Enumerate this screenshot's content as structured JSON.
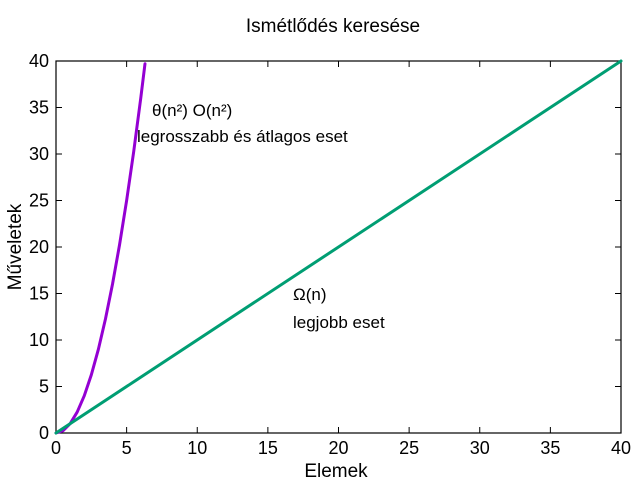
{
  "chart_data": {
    "type": "line",
    "title": "Ismétlődés keresése",
    "xlabel": "Elemek",
    "ylabel": "Műveletek",
    "xlim": [
      0,
      40
    ],
    "ylim": [
      0,
      40
    ],
    "xticks": [
      0,
      5,
      10,
      15,
      20,
      25,
      30,
      35,
      40
    ],
    "yticks": [
      0,
      5,
      10,
      15,
      20,
      25,
      30,
      35,
      40
    ],
    "grid": false,
    "series": [
      {
        "color": "#9400d3",
        "x": [
          0,
          0.5,
          1,
          1.5,
          2,
          2.5,
          3,
          3.5,
          4,
          4.5,
          5,
          5.5,
          6,
          6.3
        ],
        "y": [
          0,
          0.25,
          1,
          2.25,
          4,
          6.25,
          9,
          12.25,
          16,
          20.25,
          25,
          30.25,
          36,
          39.7
        ]
      },
      {
        "color": "#009e73",
        "x": [
          0,
          40
        ],
        "y": [
          0,
          40
        ]
      }
    ],
    "annotations": [
      {
        "line1": "θ(n²)  O(n²)",
        "line2": "legrosszabb és átlagos eset"
      },
      {
        "line1": "Ω(n)",
        "line2": "legjobb eset"
      }
    ]
  }
}
